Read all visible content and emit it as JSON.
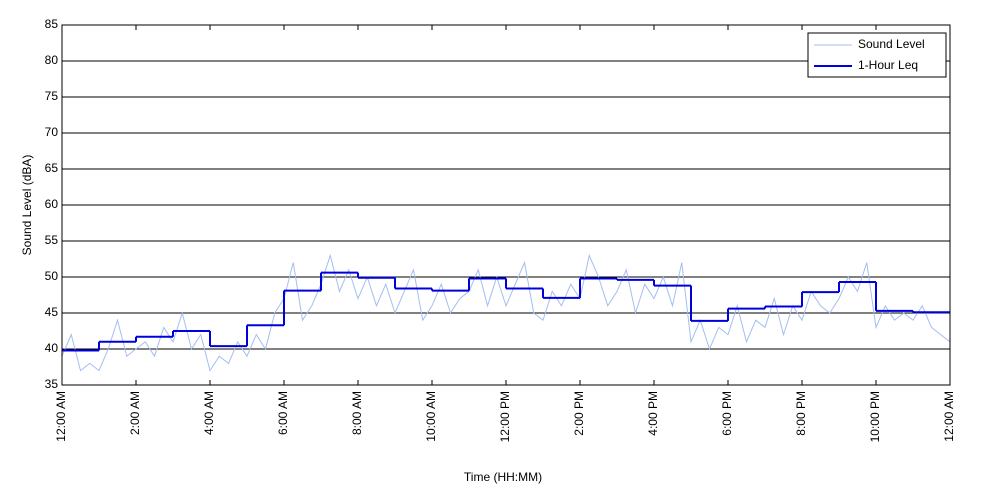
{
  "chart_data": {
    "type": "line",
    "xlabel": "Time (HH:MM)",
    "ylabel": "Sound Level (dBA)",
    "xlim": [
      0,
      24
    ],
    "xticks": [
      {
        "value": 0,
        "label": "12:00 AM"
      },
      {
        "value": 2,
        "label": "2:00 AM"
      },
      {
        "value": 4,
        "label": "4:00 AM"
      },
      {
        "value": 6,
        "label": "6:00 AM"
      },
      {
        "value": 8,
        "label": "8:00 AM"
      },
      {
        "value": 10,
        "label": "10:00 AM"
      },
      {
        "value": 12,
        "label": "12:00 PM"
      },
      {
        "value": 14,
        "label": "2:00 PM"
      },
      {
        "value": 16,
        "label": "4:00 PM"
      },
      {
        "value": 18,
        "label": "6:00 PM"
      },
      {
        "value": 20,
        "label": "8:00 PM"
      },
      {
        "value": 22,
        "label": "10:00 PM"
      },
      {
        "value": 24,
        "label": "12:00 AM"
      }
    ],
    "ylim": [
      35,
      85
    ],
    "yticks": [
      35,
      40,
      45,
      50,
      55,
      60,
      65,
      70,
      75,
      80,
      85
    ],
    "grid": true,
    "legend": "upper right",
    "series": [
      {
        "name": "Sound Level",
        "color": "#a4bef0",
        "x": [
          0,
          0.25,
          0.5,
          0.75,
          1,
          1.25,
          1.5,
          1.75,
          2,
          2.25,
          2.5,
          2.75,
          3,
          3.25,
          3.5,
          3.75,
          4,
          4.25,
          4.5,
          4.75,
          5,
          5.25,
          5.5,
          5.75,
          6,
          6.25,
          6.5,
          6.75,
          7,
          7.25,
          7.5,
          7.75,
          8,
          8.25,
          8.5,
          8.75,
          9,
          9.25,
          9.5,
          9.75,
          10,
          10.25,
          10.5,
          10.75,
          11,
          11.25,
          11.5,
          11.75,
          12,
          12.25,
          12.5,
          12.75,
          13,
          13.25,
          13.5,
          13.75,
          14,
          14.25,
          14.5,
          14.75,
          15,
          15.25,
          15.5,
          15.75,
          16,
          16.25,
          16.5,
          16.75,
          17,
          17.25,
          17.5,
          17.75,
          18,
          18.25,
          18.5,
          18.75,
          19,
          19.25,
          19.5,
          19.75,
          20,
          20.25,
          20.5,
          20.75,
          21,
          21.25,
          21.5,
          21.75,
          22,
          22.25,
          22.5,
          22.75,
          23,
          23.25,
          23.5,
          23.75,
          24
        ],
        "values": [
          39,
          42,
          37,
          38,
          37,
          40,
          44,
          39,
          40,
          41,
          39,
          43,
          41,
          45,
          40,
          42,
          37,
          39,
          38,
          41,
          39,
          42,
          40,
          45,
          47,
          52,
          44,
          46,
          49,
          53,
          48,
          51,
          47,
          50,
          46,
          49,
          45,
          48,
          51,
          44,
          46,
          49,
          45,
          47,
          48,
          51,
          46,
          50,
          46,
          49,
          52,
          45,
          44,
          48,
          46,
          49,
          47,
          53,
          50,
          46,
          48,
          51,
          45,
          49,
          47,
          50,
          46,
          52,
          41,
          44,
          40,
          43,
          42,
          46,
          41,
          44,
          43,
          47,
          42,
          46,
          44,
          48,
          46,
          45,
          47,
          50,
          48,
          52,
          43,
          46,
          44,
          45,
          44,
          46,
          43,
          42,
          41
        ]
      },
      {
        "name": "1-Hour Leq",
        "color": "#0000dd",
        "step": true,
        "x": [
          0,
          1,
          2,
          3,
          4,
          5,
          6,
          7,
          8,
          9,
          10,
          11,
          12,
          13,
          14,
          15,
          16,
          17,
          18,
          19,
          20,
          21,
          22,
          23
        ],
        "values": [
          39.8,
          41.0,
          41.7,
          42.5,
          40.4,
          43.3,
          48.1,
          50.6,
          49.9,
          48.4,
          48.1,
          49.8,
          48.4,
          47.1,
          49.8,
          49.6,
          48.8,
          43.9,
          45.6,
          45.9,
          47.9,
          49.3,
          45.3,
          45.1
        ]
      }
    ]
  }
}
